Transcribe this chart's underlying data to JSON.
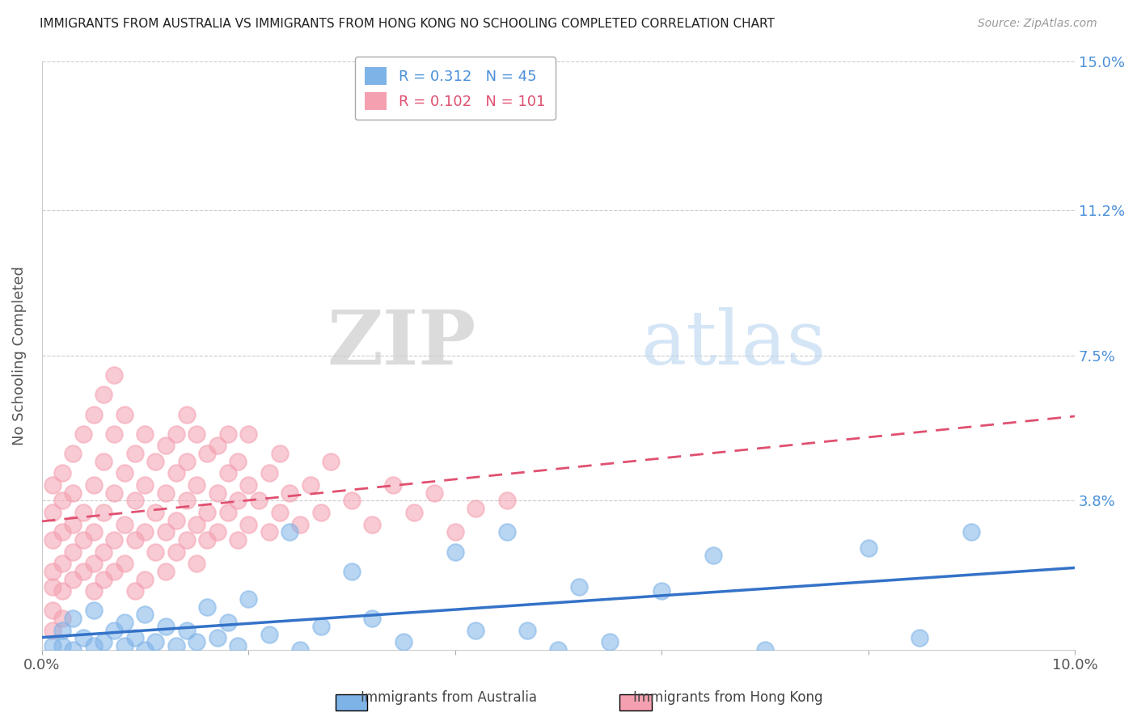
{
  "title": "IMMIGRANTS FROM AUSTRALIA VS IMMIGRANTS FROM HONG KONG NO SCHOOLING COMPLETED CORRELATION CHART",
  "source": "Source: ZipAtlas.com",
  "ylabel": "No Schooling Completed",
  "xlim": [
    0.0,
    0.1
  ],
  "ylim": [
    0.0,
    0.15
  ],
  "xticks": [
    0.0,
    0.02,
    0.04,
    0.06,
    0.08,
    0.1
  ],
  "xticklabels": [
    "0.0%",
    "",
    "",
    "",
    "",
    "10.0%"
  ],
  "ytick_values": [
    0.0,
    0.038,
    0.075,
    0.112,
    0.15
  ],
  "yticklabels": [
    "",
    "3.8%",
    "7.5%",
    "11.2%",
    "15.0%"
  ],
  "australia_color": "#7EB3E8",
  "hongkong_color": "#F4A0B0",
  "australia_R": 0.312,
  "australia_N": 45,
  "hongkong_R": 0.102,
  "hongkong_N": 101,
  "legend_label_australia": "Immigrants from Australia",
  "legend_label_hongkong": "Immigrants from Hong Kong",
  "watermark_zip": "ZIP",
  "watermark_atlas": "atlas",
  "background_color": "#ffffff",
  "grid_color": "#cccccc",
  "australia_scatter": [
    [
      0.001,
      0.001
    ],
    [
      0.002,
      0.005
    ],
    [
      0.002,
      0.001
    ],
    [
      0.003,
      0.0
    ],
    [
      0.003,
      0.008
    ],
    [
      0.004,
      0.003
    ],
    [
      0.005,
      0.001
    ],
    [
      0.005,
      0.01
    ],
    [
      0.006,
      0.002
    ],
    [
      0.007,
      0.005
    ],
    [
      0.008,
      0.001
    ],
    [
      0.008,
      0.007
    ],
    [
      0.009,
      0.003
    ],
    [
      0.01,
      0.0
    ],
    [
      0.01,
      0.009
    ],
    [
      0.011,
      0.002
    ],
    [
      0.012,
      0.006
    ],
    [
      0.013,
      0.001
    ],
    [
      0.014,
      0.005
    ],
    [
      0.015,
      0.002
    ],
    [
      0.016,
      0.011
    ],
    [
      0.017,
      0.003
    ],
    [
      0.018,
      0.007
    ],
    [
      0.019,
      0.001
    ],
    [
      0.02,
      0.013
    ],
    [
      0.022,
      0.004
    ],
    [
      0.024,
      0.03
    ],
    [
      0.025,
      0.0
    ],
    [
      0.027,
      0.006
    ],
    [
      0.03,
      0.02
    ],
    [
      0.032,
      0.008
    ],
    [
      0.035,
      0.002
    ],
    [
      0.04,
      0.025
    ],
    [
      0.042,
      0.005
    ],
    [
      0.045,
      0.03
    ],
    [
      0.047,
      0.005
    ],
    [
      0.05,
      0.0
    ],
    [
      0.052,
      0.016
    ],
    [
      0.055,
      0.002
    ],
    [
      0.06,
      0.015
    ],
    [
      0.065,
      0.024
    ],
    [
      0.07,
      0.0
    ],
    [
      0.08,
      0.026
    ],
    [
      0.085,
      0.003
    ],
    [
      0.09,
      0.03
    ]
  ],
  "hongkong_scatter": [
    [
      0.001,
      0.028
    ],
    [
      0.001,
      0.02
    ],
    [
      0.001,
      0.016
    ],
    [
      0.001,
      0.01
    ],
    [
      0.001,
      0.005
    ],
    [
      0.001,
      0.035
    ],
    [
      0.001,
      0.042
    ],
    [
      0.002,
      0.03
    ],
    [
      0.002,
      0.022
    ],
    [
      0.002,
      0.015
    ],
    [
      0.002,
      0.008
    ],
    [
      0.002,
      0.038
    ],
    [
      0.002,
      0.045
    ],
    [
      0.003,
      0.032
    ],
    [
      0.003,
      0.025
    ],
    [
      0.003,
      0.018
    ],
    [
      0.003,
      0.04
    ],
    [
      0.003,
      0.05
    ],
    [
      0.004,
      0.028
    ],
    [
      0.004,
      0.035
    ],
    [
      0.004,
      0.02
    ],
    [
      0.004,
      0.055
    ],
    [
      0.005,
      0.03
    ],
    [
      0.005,
      0.042
    ],
    [
      0.005,
      0.022
    ],
    [
      0.005,
      0.06
    ],
    [
      0.005,
      0.015
    ],
    [
      0.006,
      0.035
    ],
    [
      0.006,
      0.048
    ],
    [
      0.006,
      0.025
    ],
    [
      0.006,
      0.065
    ],
    [
      0.006,
      0.018
    ],
    [
      0.007,
      0.04
    ],
    [
      0.007,
      0.055
    ],
    [
      0.007,
      0.028
    ],
    [
      0.007,
      0.07
    ],
    [
      0.007,
      0.02
    ],
    [
      0.008,
      0.045
    ],
    [
      0.008,
      0.032
    ],
    [
      0.008,
      0.06
    ],
    [
      0.008,
      0.022
    ],
    [
      0.009,
      0.038
    ],
    [
      0.009,
      0.05
    ],
    [
      0.009,
      0.028
    ],
    [
      0.009,
      0.015
    ],
    [
      0.01,
      0.042
    ],
    [
      0.01,
      0.055
    ],
    [
      0.01,
      0.03
    ],
    [
      0.01,
      0.018
    ],
    [
      0.011,
      0.035
    ],
    [
      0.011,
      0.048
    ],
    [
      0.011,
      0.025
    ],
    [
      0.012,
      0.04
    ],
    [
      0.012,
      0.052
    ],
    [
      0.012,
      0.03
    ],
    [
      0.012,
      0.02
    ],
    [
      0.013,
      0.045
    ],
    [
      0.013,
      0.033
    ],
    [
      0.013,
      0.055
    ],
    [
      0.013,
      0.025
    ],
    [
      0.014,
      0.038
    ],
    [
      0.014,
      0.048
    ],
    [
      0.014,
      0.028
    ],
    [
      0.014,
      0.06
    ],
    [
      0.015,
      0.042
    ],
    [
      0.015,
      0.032
    ],
    [
      0.015,
      0.055
    ],
    [
      0.015,
      0.022
    ],
    [
      0.016,
      0.035
    ],
    [
      0.016,
      0.05
    ],
    [
      0.016,
      0.028
    ],
    [
      0.017,
      0.04
    ],
    [
      0.017,
      0.052
    ],
    [
      0.017,
      0.03
    ],
    [
      0.018,
      0.045
    ],
    [
      0.018,
      0.035
    ],
    [
      0.018,
      0.055
    ],
    [
      0.019,
      0.038
    ],
    [
      0.019,
      0.048
    ],
    [
      0.019,
      0.028
    ],
    [
      0.02,
      0.042
    ],
    [
      0.02,
      0.032
    ],
    [
      0.02,
      0.055
    ],
    [
      0.021,
      0.038
    ],
    [
      0.022,
      0.03
    ],
    [
      0.022,
      0.045
    ],
    [
      0.023,
      0.035
    ],
    [
      0.023,
      0.05
    ],
    [
      0.024,
      0.04
    ],
    [
      0.025,
      0.032
    ],
    [
      0.026,
      0.042
    ],
    [
      0.027,
      0.035
    ],
    [
      0.028,
      0.048
    ],
    [
      0.03,
      0.038
    ],
    [
      0.032,
      0.032
    ],
    [
      0.034,
      0.042
    ],
    [
      0.036,
      0.035
    ],
    [
      0.038,
      0.04
    ],
    [
      0.04,
      0.03
    ],
    [
      0.042,
      0.036
    ],
    [
      0.045,
      0.038
    ]
  ]
}
